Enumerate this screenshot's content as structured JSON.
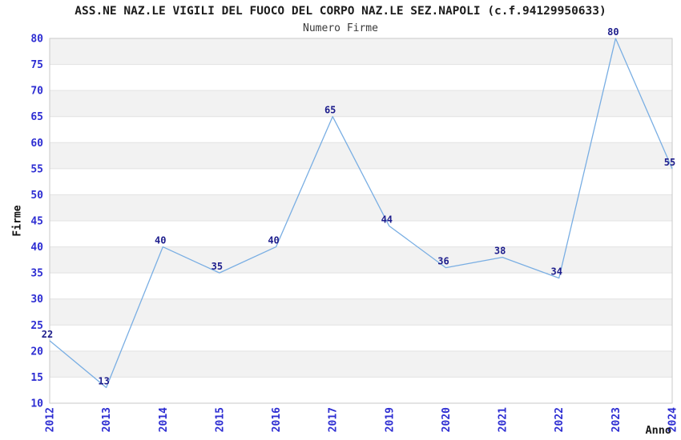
{
  "chart_data": {
    "type": "line",
    "title": "ASS.NE NAZ.LE VIGILI DEL FUOCO DEL CORPO NAZ.LE SEZ.NAPOLI (c.f.94129950633)",
    "subtitle": "Numero Firme",
    "xlabel": "Anno",
    "ylabel": "Firme",
    "categories": [
      "2012",
      "2013",
      "2014",
      "2015",
      "2016",
      "2017",
      "2019",
      "2020",
      "2021",
      "2022",
      "2023",
      "2024"
    ],
    "values": [
      22,
      13,
      40,
      35,
      40,
      65,
      44,
      36,
      38,
      34,
      80,
      55
    ],
    "ylim": [
      10,
      80
    ],
    "ytick_step": 5,
    "grid": true,
    "legend": "none",
    "x_tick_rotation": -90,
    "colors": {
      "line": "#79aee3",
      "tick_label": "#2d2dd2",
      "data_label": "#1d1d8c",
      "band_dark": "#f2f2f2",
      "band_light": "#ffffff",
      "gridline": "#e2e2e2",
      "border": "#c9c9c9",
      "title": "#1c1c1c",
      "subtitle": "#3a3a3a",
      "axis_label": "#111111"
    }
  }
}
